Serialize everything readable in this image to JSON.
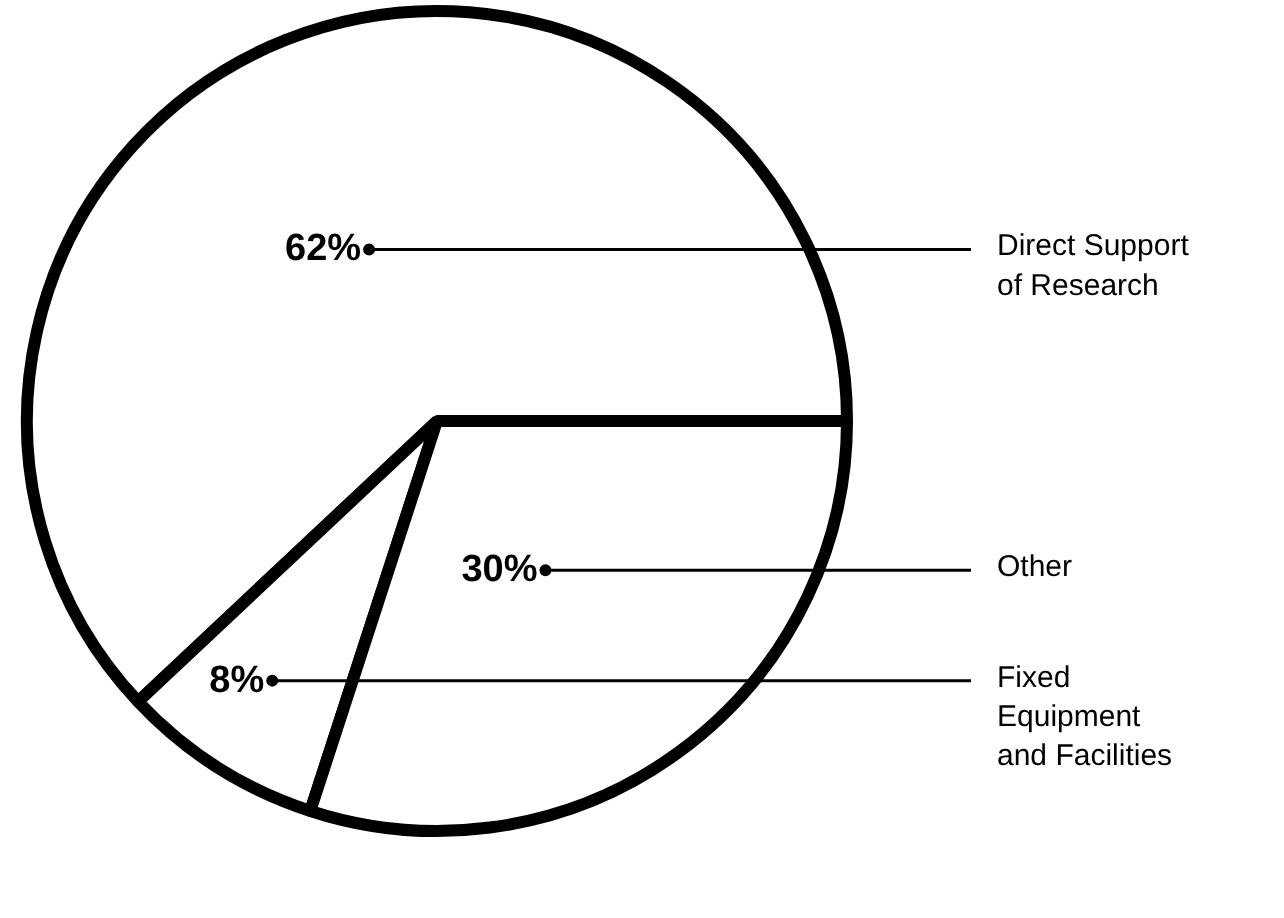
{
  "chart_data": {
    "type": "pie",
    "categories": [
      "Direct Support\nof Research",
      "Fixed\nEquipment\nand Facilities",
      "Other"
    ],
    "values": [
      62,
      8,
      30
    ],
    "colors": [
      "#ffffff",
      "#ffffff",
      "#ffffff"
    ],
    "value_labels": [
      "62%",
      "8%",
      "30%"
    ]
  }
}
